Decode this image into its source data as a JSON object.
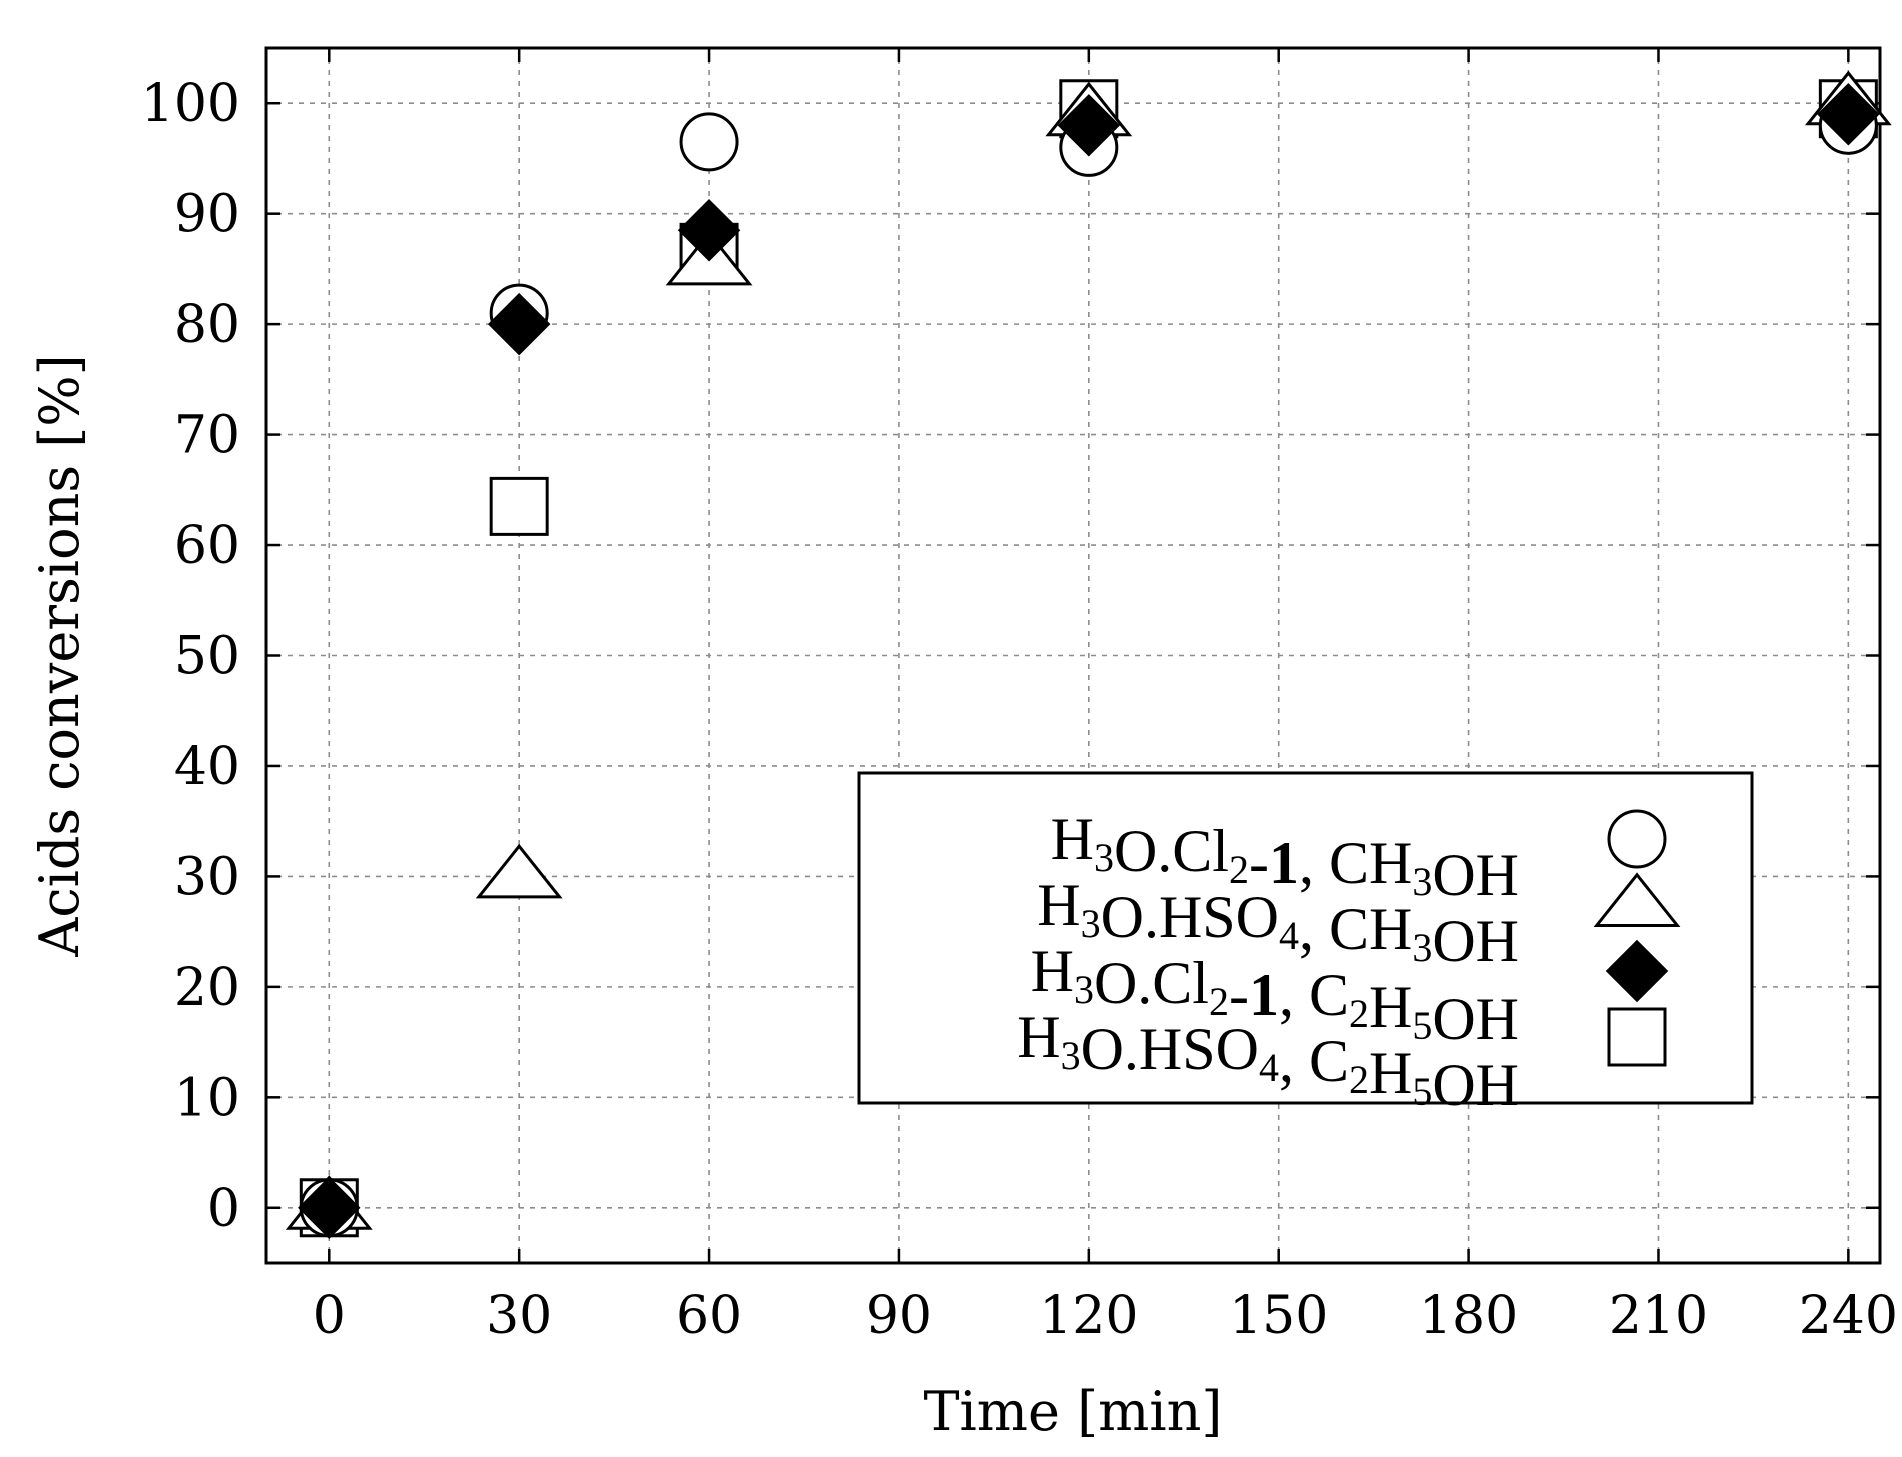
{
  "chart_data": {
    "type": "scatter",
    "xlabel": "Time [min]",
    "ylabel": "Acids conversions [%]",
    "xlim": [
      -10,
      245
    ],
    "ylim": [
      -5,
      105
    ],
    "xticks": [
      0,
      30,
      60,
      90,
      120,
      150,
      180,
      210,
      240
    ],
    "yticks": [
      0,
      10,
      20,
      30,
      40,
      50,
      60,
      70,
      80,
      90,
      100
    ],
    "grid": true,
    "legend_position": "lower-right",
    "series": [
      {
        "name": "H3O.Cl2-1, CH3OH",
        "label_parts": [
          [
            "H",
            ""
          ],
          [
            "3",
            "sub"
          ],
          [
            "O.Cl",
            ""
          ],
          [
            "2",
            "sub"
          ],
          [
            "-",
            ""
          ],
          [
            "1",
            "bold"
          ],
          [
            ", CH",
            ""
          ],
          [
            "3",
            "sub"
          ],
          [
            "OH",
            ""
          ]
        ],
        "marker": "circle-open",
        "x": [
          0,
          30,
          60,
          120,
          240
        ],
        "y": [
          0,
          81,
          96.5,
          96,
          98
        ]
      },
      {
        "name": "H3O.HSO4, CH3OH",
        "label_parts": [
          [
            "H",
            ""
          ],
          [
            "3",
            "sub"
          ],
          [
            "O.HSO",
            ""
          ],
          [
            "4",
            "sub"
          ],
          [
            ", CH",
            ""
          ],
          [
            "3",
            "sub"
          ],
          [
            "OH",
            ""
          ]
        ],
        "marker": "triangle-open",
        "x": [
          0,
          30,
          60,
          120,
          240
        ],
        "y": [
          0,
          30,
          85.5,
          99,
          100
        ]
      },
      {
        "name": "H3O.Cl2-1, C2H5OH",
        "label_parts": [
          [
            "H",
            ""
          ],
          [
            "3",
            "sub"
          ],
          [
            "O.Cl",
            ""
          ],
          [
            "2",
            "sub"
          ],
          [
            "-",
            ""
          ],
          [
            "1",
            "bold"
          ],
          [
            ", C",
            ""
          ],
          [
            "2",
            "sub"
          ],
          [
            "H",
            ""
          ],
          [
            "5",
            "sub"
          ],
          [
            "OH",
            ""
          ]
        ],
        "marker": "diamond-filled",
        "x": [
          0,
          30,
          60,
          120,
          240
        ],
        "y": [
          0,
          80,
          88.5,
          98,
          99
        ]
      },
      {
        "name": "H3O.HSO4, C2H5OH",
        "label_parts": [
          [
            "H",
            ""
          ],
          [
            "3",
            "sub"
          ],
          [
            "O.HSO",
            ""
          ],
          [
            "4",
            "sub"
          ],
          [
            ", C",
            ""
          ],
          [
            "2",
            "sub"
          ],
          [
            "H",
            ""
          ],
          [
            "5",
            "sub"
          ],
          [
            "OH",
            ""
          ]
        ],
        "marker": "square-open",
        "x": [
          0,
          30,
          60,
          120,
          240
        ],
        "y": [
          0,
          63.5,
          86.5,
          99.5,
          99.5
        ]
      }
    ]
  }
}
